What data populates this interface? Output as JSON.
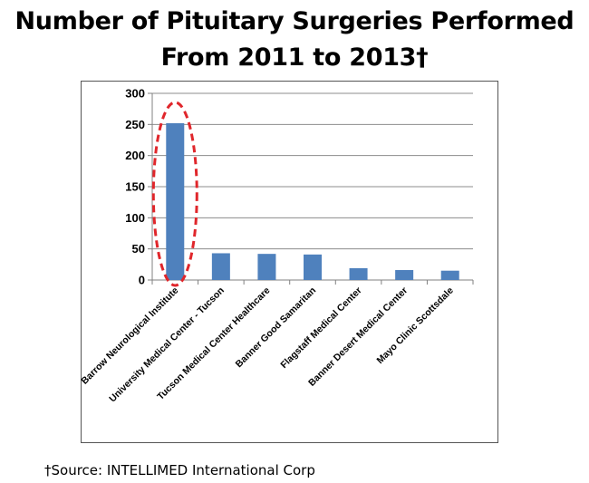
{
  "title": {
    "line1": "Number of Pituitary Surgeries Performed",
    "line2": "From 2011 to 2013†"
  },
  "footnote": "†Source: INTELLIMED International Corp",
  "chart_data": {
    "type": "bar",
    "title": "Number of Pituitary Surgeries Performed From 2011 to 2013†",
    "categories": [
      "Barrow Neurological Institute",
      "University Medical Center - Tucson",
      "Tucson Medical Center Healthcare",
      "Banner Good Samaritan",
      "Flagstaff Medical Center",
      "Banner Desert Medical Center",
      "Mayo Clinic Scottsdale"
    ],
    "values": [
      252,
      43,
      42,
      41,
      19,
      16,
      15
    ],
    "ylim": [
      0,
      300
    ],
    "yticks": [
      0,
      50,
      100,
      150,
      200,
      250,
      300
    ],
    "grid": true,
    "legend": "none",
    "highlight": {
      "index": 0,
      "style": "red dashed ellipse"
    },
    "colors": {
      "bar": "#4f81bd",
      "highlight": "#e0262b",
      "grid": "#8c8c8c"
    }
  }
}
